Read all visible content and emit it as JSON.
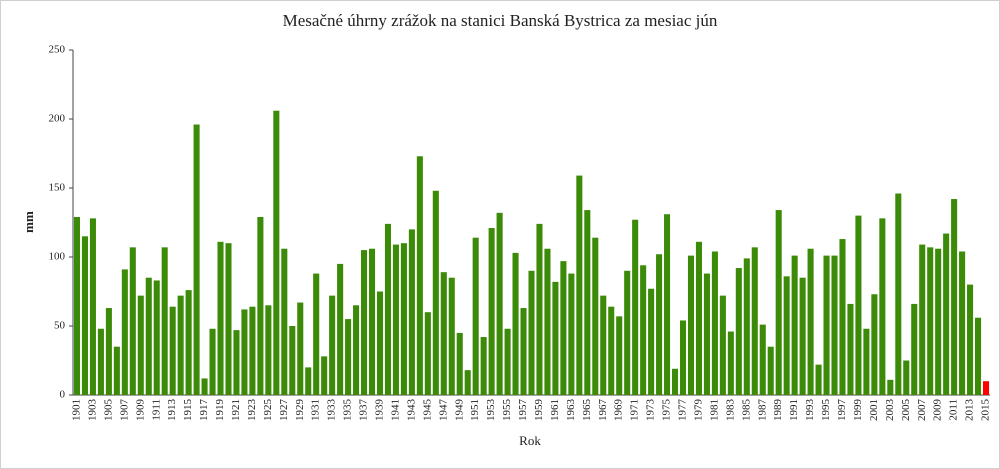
{
  "chart_data": {
    "type": "bar",
    "title": "Mesačné úhrny zrážok na stanici Banská Bystrica  za mesiac jún",
    "x_label": "Rok",
    "y_label": "mm",
    "categories": [
      "1901",
      null,
      "1903",
      null,
      "1905",
      null,
      "1907",
      null,
      "1909",
      null,
      "1911",
      null,
      "1913",
      null,
      "1915",
      null,
      "1917",
      null,
      "1919",
      null,
      "1921",
      null,
      "1923",
      null,
      "1925",
      null,
      "1927",
      null,
      "1929",
      null,
      "1931",
      null,
      "1933",
      null,
      "1935",
      null,
      "1937",
      null,
      "1939",
      null,
      "1941",
      null,
      "1943",
      null,
      "1945",
      null,
      "1947",
      null,
      "1949",
      null,
      "1951",
      null,
      "1953",
      null,
      "1955",
      null,
      "1957",
      null,
      "1959",
      null,
      "1961",
      null,
      "1963",
      null,
      "1965",
      null,
      "1967",
      null,
      "1969",
      null,
      "1971",
      null,
      "1973",
      null,
      "1975",
      null,
      "1977",
      null,
      "1979",
      null,
      "1981",
      null,
      "1983",
      null,
      "1985",
      null,
      "1987",
      null,
      "1989",
      null,
      "1991",
      null,
      "1993",
      null,
      "1995",
      null,
      "1997",
      null,
      "1999",
      null,
      "2001",
      null,
      "2003",
      null,
      "2005",
      null,
      "2007",
      null,
      "2009",
      null,
      "2011",
      null,
      "2013",
      null,
      "2015"
    ],
    "values": [
      129,
      115,
      128,
      48,
      63,
      35,
      91,
      107,
      72,
      85,
      83,
      107,
      64,
      72,
      76,
      196,
      12,
      48,
      111,
      110,
      47,
      62,
      64,
      129,
      65,
      206,
      106,
      50,
      67,
      20,
      88,
      28,
      72,
      95,
      55,
      65,
      105,
      106,
      75,
      124,
      109,
      110,
      120,
      173,
      60,
      148,
      89,
      85,
      45,
      18,
      114,
      42,
      121,
      132,
      48,
      103,
      63,
      90,
      124,
      106,
      82,
      97,
      88,
      159,
      134,
      114,
      72,
      64,
      57,
      90,
      127,
      94,
      77,
      102,
      131,
      19,
      54,
      101,
      111,
      88,
      104,
      72,
      46,
      92,
      99,
      107,
      51,
      35,
      134,
      86,
      101,
      85,
      106,
      22,
      101,
      101,
      113,
      66,
      130,
      48,
      73,
      128,
      11,
      146,
      25,
      66,
      109,
      107,
      106,
      117,
      142,
      104,
      80,
      56,
      10
    ],
    "colors": [
      "#3b8a08",
      "#3b8a08",
      "#3b8a08",
      "#3b8a08",
      "#3b8a08",
      "#3b8a08",
      "#3b8a08",
      "#3b8a08",
      "#3b8a08",
      "#3b8a08",
      "#3b8a08",
      "#3b8a08",
      "#3b8a08",
      "#3b8a08",
      "#3b8a08",
      "#3b8a08",
      "#3b8a08",
      "#3b8a08",
      "#3b8a08",
      "#3b8a08",
      "#3b8a08",
      "#3b8a08",
      "#3b8a08",
      "#3b8a08",
      "#3b8a08",
      "#3b8a08",
      "#3b8a08",
      "#3b8a08",
      "#3b8a08",
      "#3b8a08",
      "#3b8a08",
      "#3b8a08",
      "#3b8a08",
      "#3b8a08",
      "#3b8a08",
      "#3b8a08",
      "#3b8a08",
      "#3b8a08",
      "#3b8a08",
      "#3b8a08",
      "#3b8a08",
      "#3b8a08",
      "#3b8a08",
      "#3b8a08",
      "#3b8a08",
      "#3b8a08",
      "#3b8a08",
      "#3b8a08",
      "#3b8a08",
      "#3b8a08",
      "#3b8a08",
      "#3b8a08",
      "#3b8a08",
      "#3b8a08",
      "#3b8a08",
      "#3b8a08",
      "#3b8a08",
      "#3b8a08",
      "#3b8a08",
      "#3b8a08",
      "#3b8a08",
      "#3b8a08",
      "#3b8a08",
      "#3b8a08",
      "#3b8a08",
      "#3b8a08",
      "#3b8a08",
      "#3b8a08",
      "#3b8a08",
      "#3b8a08",
      "#3b8a08",
      "#3b8a08",
      "#3b8a08",
      "#3b8a08",
      "#3b8a08",
      "#3b8a08",
      "#3b8a08",
      "#3b8a08",
      "#3b8a08",
      "#3b8a08",
      "#3b8a08",
      "#3b8a08",
      "#3b8a08",
      "#3b8a08",
      "#3b8a08",
      "#3b8a08",
      "#3b8a08",
      "#3b8a08",
      "#3b8a08",
      "#3b8a08",
      "#3b8a08",
      "#3b8a08",
      "#3b8a08",
      "#3b8a08",
      "#3b8a08",
      "#3b8a08",
      "#3b8a08",
      "#3b8a08",
      "#3b8a08",
      "#3b8a08",
      "#3b8a08",
      "#3b8a08",
      "#3b8a08",
      "#3b8a08",
      "#3b8a08",
      "#3b8a08",
      "#3b8a08",
      "#3b8a08",
      "#3b8a08",
      "#3b8a08",
      "#3b8a08",
      "#3b8a08",
      "#3b8a08",
      "#3b8a08",
      "#ff0000"
    ],
    "ylim": [
      0,
      250
    ],
    "yticks": [
      0,
      50,
      100,
      150,
      200,
      250
    ],
    "grid": false
  }
}
